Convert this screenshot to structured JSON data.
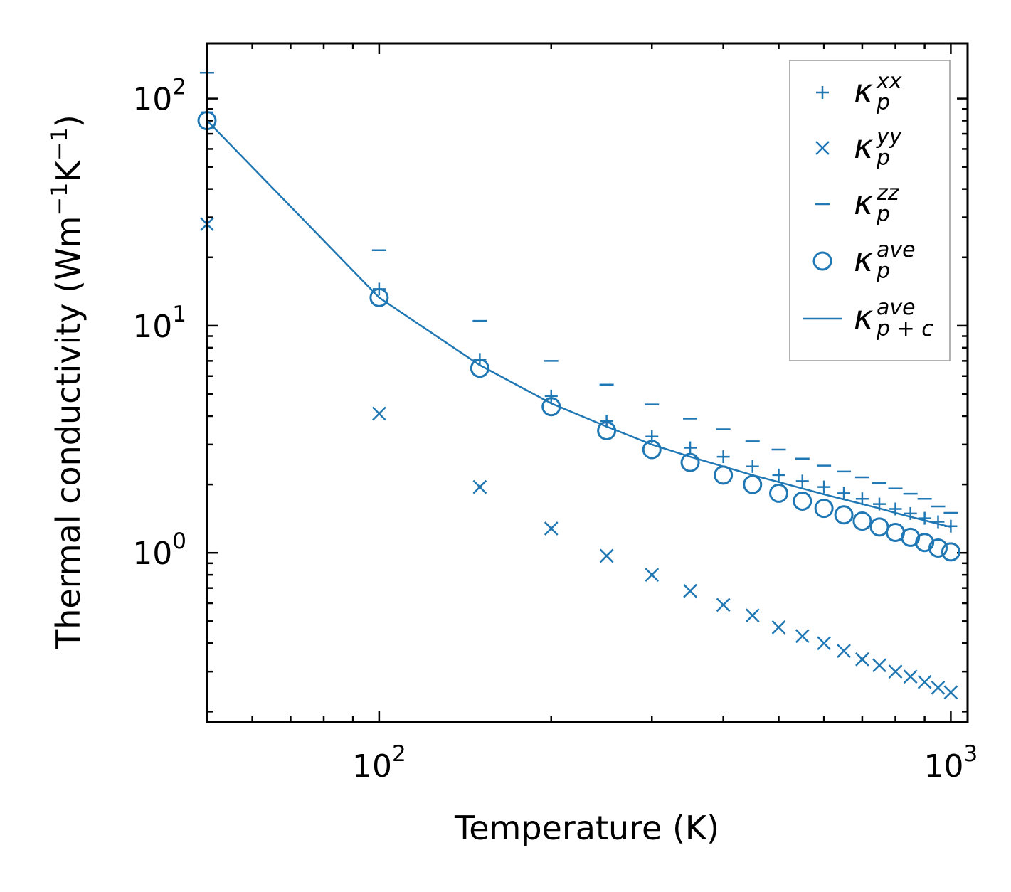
{
  "chart_data": {
    "type": "scatter",
    "xscale": "log",
    "yscale": "log",
    "xlabel": "Temperature (K)",
    "ylabel": {
      "base": "Thermal conductivity (Wm",
      "exp1": "−1",
      "mid": "K",
      "exp2": "−1",
      "end": ")"
    },
    "xlim": [
      50,
      1070
    ],
    "ylim": [
      0.18,
      175
    ],
    "xticks": [
      {
        "base": "10",
        "exp": "2",
        "value": 100
      },
      {
        "base": "10",
        "exp": "3",
        "value": 1000
      }
    ],
    "yticks": [
      {
        "base": "10",
        "exp": "0",
        "value": 1
      },
      {
        "base": "10",
        "exp": "1",
        "value": 10
      },
      {
        "base": "10",
        "exp": "2",
        "value": 100
      }
    ],
    "color": "#1f77b4",
    "x": [
      50,
      100,
      150,
      200,
      250,
      300,
      350,
      400,
      450,
      500,
      550,
      600,
      650,
      700,
      750,
      800,
      850,
      900,
      950,
      1000
    ],
    "series": [
      {
        "name": "kappa_p_xx",
        "label": {
          "sym": "κ",
          "sub": "p",
          "sup": "xx"
        },
        "marker": "plus",
        "values": [
          87,
          14.5,
          7.1,
          4.9,
          3.8,
          3.25,
          2.9,
          2.65,
          2.4,
          2.2,
          2.07,
          1.95,
          1.83,
          1.73,
          1.64,
          1.56,
          1.49,
          1.42,
          1.37,
          1.31
        ]
      },
      {
        "name": "kappa_p_yy",
        "label": {
          "sym": "κ",
          "sub": "p",
          "sup": "yy"
        },
        "marker": "x",
        "values": [
          28,
          4.1,
          1.95,
          1.28,
          0.97,
          0.8,
          0.68,
          0.59,
          0.53,
          0.47,
          0.43,
          0.4,
          0.37,
          0.34,
          0.32,
          0.3,
          0.285,
          0.27,
          0.255,
          0.243
        ]
      },
      {
        "name": "kappa_p_zz",
        "label": {
          "sym": "κ",
          "sub": "p",
          "sup": "zz"
        },
        "marker": "hline",
        "values": [
          130,
          21.5,
          10.5,
          7.0,
          5.5,
          4.5,
          3.9,
          3.5,
          3.1,
          2.85,
          2.6,
          2.42,
          2.28,
          2.15,
          2.03,
          1.92,
          1.82,
          1.73,
          1.6,
          1.5
        ]
      },
      {
        "name": "kappa_p_ave",
        "label": {
          "sym": "κ",
          "sub": "p",
          "sup": "ave"
        },
        "marker": "circle",
        "values": [
          80,
          13.3,
          6.5,
          4.4,
          3.45,
          2.85,
          2.5,
          2.2,
          2.0,
          1.83,
          1.69,
          1.57,
          1.47,
          1.38,
          1.3,
          1.23,
          1.17,
          1.11,
          1.05,
          1.01
        ]
      },
      {
        "name": "kappa_pc_ave",
        "label": {
          "sym": "κ",
          "sub": "p + c",
          "sup": "ave"
        },
        "marker": "line",
        "values": [
          80,
          13.3,
          6.7,
          4.55,
          3.6,
          3.0,
          2.65,
          2.4,
          2.2,
          2.05,
          1.92,
          1.81,
          1.72,
          1.64,
          1.57,
          1.5,
          1.44,
          1.39,
          1.34,
          1.3
        ]
      }
    ],
    "legend_position": "top-right"
  }
}
